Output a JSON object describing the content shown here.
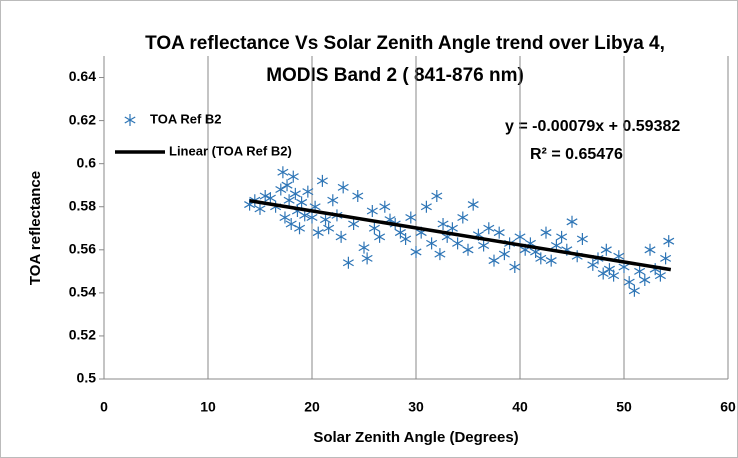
{
  "chart_data": {
    "type": "scatter",
    "title": [
      "TOA reflectance Vs Solar Zenith Angle trend over Libya 4,",
      "MODIS Band 2  ( 841-876 nm)"
    ],
    "xlabel": "Solar Zenith Angle (Degrees)",
    "ylabel": "TOA reflectance",
    "xlim": [
      0,
      60
    ],
    "xticks": [
      0,
      10,
      20,
      30,
      40,
      50,
      60
    ],
    "ylim": [
      0.5,
      0.65
    ],
    "yticks": [
      0.5,
      0.52,
      0.54,
      0.56,
      0.58,
      0.6,
      0.62,
      0.64
    ],
    "grid": "x",
    "legend": "upper left",
    "series": [
      {
        "name": "TOA Ref B2",
        "color": "#2e75b6",
        "x": [
          14,
          14.5,
          15,
          15.5,
          16,
          16.5,
          17,
          17.2,
          17.4,
          17.6,
          17.8,
          18,
          18.2,
          18.4,
          18.6,
          18.8,
          19,
          19.3,
          19.6,
          20,
          20.3,
          20.6,
          21,
          21.3,
          21.6,
          22,
          22.4,
          22.8,
          23,
          23.5,
          24,
          24.4,
          25,
          25.3,
          25.8,
          26,
          26.5,
          27,
          27.5,
          28,
          28.5,
          29,
          29.5,
          30,
          30.5,
          31,
          31.5,
          32,
          32.3,
          32.6,
          33,
          33.5,
          34,
          34.5,
          35,
          35.5,
          36,
          36.5,
          37,
          37.5,
          38,
          38.5,
          39,
          39.5,
          40,
          40.5,
          41,
          41.5,
          42,
          42.5,
          43,
          43.5,
          44,
          44.5,
          45,
          45.5,
          46,
          47,
          47.5,
          48,
          48.3,
          48.6,
          49,
          49.5,
          50,
          50.5,
          51,
          51.5,
          52,
          52.5,
          53,
          53.5,
          54,
          54.3
        ],
        "values": [
          0.581,
          0.583,
          0.579,
          0.585,
          0.584,
          0.58,
          0.588,
          0.596,
          0.575,
          0.59,
          0.583,
          0.572,
          0.594,
          0.586,
          0.578,
          0.57,
          0.582,
          0.576,
          0.587,
          0.575,
          0.58,
          0.568,
          0.592,
          0.574,
          0.57,
          0.583,
          0.576,
          0.566,
          0.589,
          0.554,
          0.572,
          0.585,
          0.561,
          0.556,
          0.578,
          0.57,
          0.566,
          0.58,
          0.574,
          0.572,
          0.568,
          0.565,
          0.575,
          0.559,
          0.568,
          0.58,
          0.563,
          0.585,
          0.558,
          0.572,
          0.566,
          0.57,
          0.563,
          0.575,
          0.56,
          0.581,
          0.567,
          0.562,
          0.57,
          0.555,
          0.568,
          0.558,
          0.563,
          0.552,
          0.566,
          0.56,
          0.563,
          0.559,
          0.556,
          0.568,
          0.555,
          0.562,
          0.566,
          0.56,
          0.573,
          0.557,
          0.565,
          0.553,
          0.556,
          0.549,
          0.56,
          0.551,
          0.548,
          0.557,
          0.552,
          0.545,
          0.541,
          0.55,
          0.546,
          0.56,
          0.551,
          0.548,
          0.556,
          0.564
        ]
      }
    ],
    "trendline": {
      "name": "Linear (TOA Ref B2)",
      "color": "#000000",
      "x": [
        14,
        54.5
      ],
      "values": [
        0.5828,
        0.5508
      ]
    },
    "annotations": [
      "y = -0.00079x + 0.59382",
      "R² = 0.65476"
    ]
  }
}
